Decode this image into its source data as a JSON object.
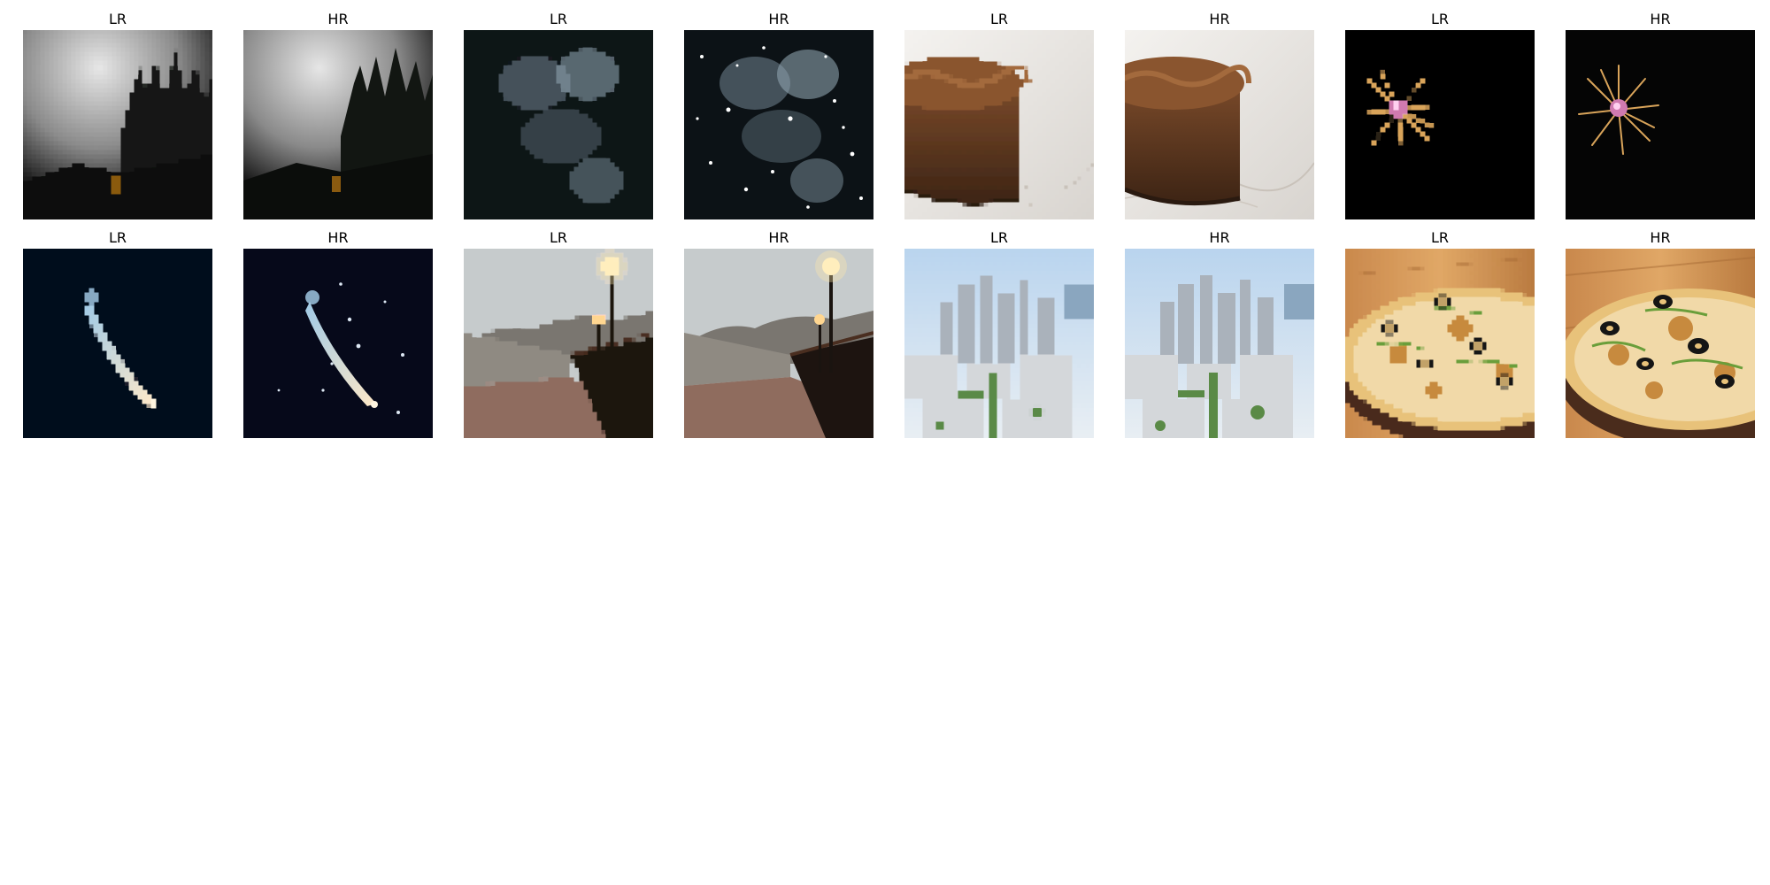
{
  "grid": {
    "cells": [
      {
        "label": "LR",
        "scene": "misty-forest-icon",
        "kind": "lr"
      },
      {
        "label": "HR",
        "scene": "misty-forest-icon",
        "kind": "hr"
      },
      {
        "label": "LR",
        "scene": "snowfall-icon",
        "kind": "lr"
      },
      {
        "label": "HR",
        "scene": "snowfall-icon",
        "kind": "hr"
      },
      {
        "label": "LR",
        "scene": "chocolate-mousse-icon",
        "kind": "lr"
      },
      {
        "label": "HR",
        "scene": "chocolate-mousse-icon",
        "kind": "hr"
      },
      {
        "label": "LR",
        "scene": "firework-icon",
        "kind": "lr"
      },
      {
        "label": "HR",
        "scene": "firework-icon",
        "kind": "hr"
      },
      {
        "label": "LR",
        "scene": "comet-icon",
        "kind": "lr"
      },
      {
        "label": "HR",
        "scene": "comet-icon",
        "kind": "hr"
      },
      {
        "label": "LR",
        "scene": "bridge-lamp-icon",
        "kind": "lr"
      },
      {
        "label": "HR",
        "scene": "bridge-lamp-icon",
        "kind": "hr"
      },
      {
        "label": "LR",
        "scene": "city-skyline-icon",
        "kind": "lr"
      },
      {
        "label": "HR",
        "scene": "city-skyline-icon",
        "kind": "hr"
      },
      {
        "label": "LR",
        "scene": "pizza-icon",
        "kind": "lr"
      },
      {
        "label": "HR",
        "scene": "pizza-icon",
        "kind": "hr"
      }
    ]
  }
}
